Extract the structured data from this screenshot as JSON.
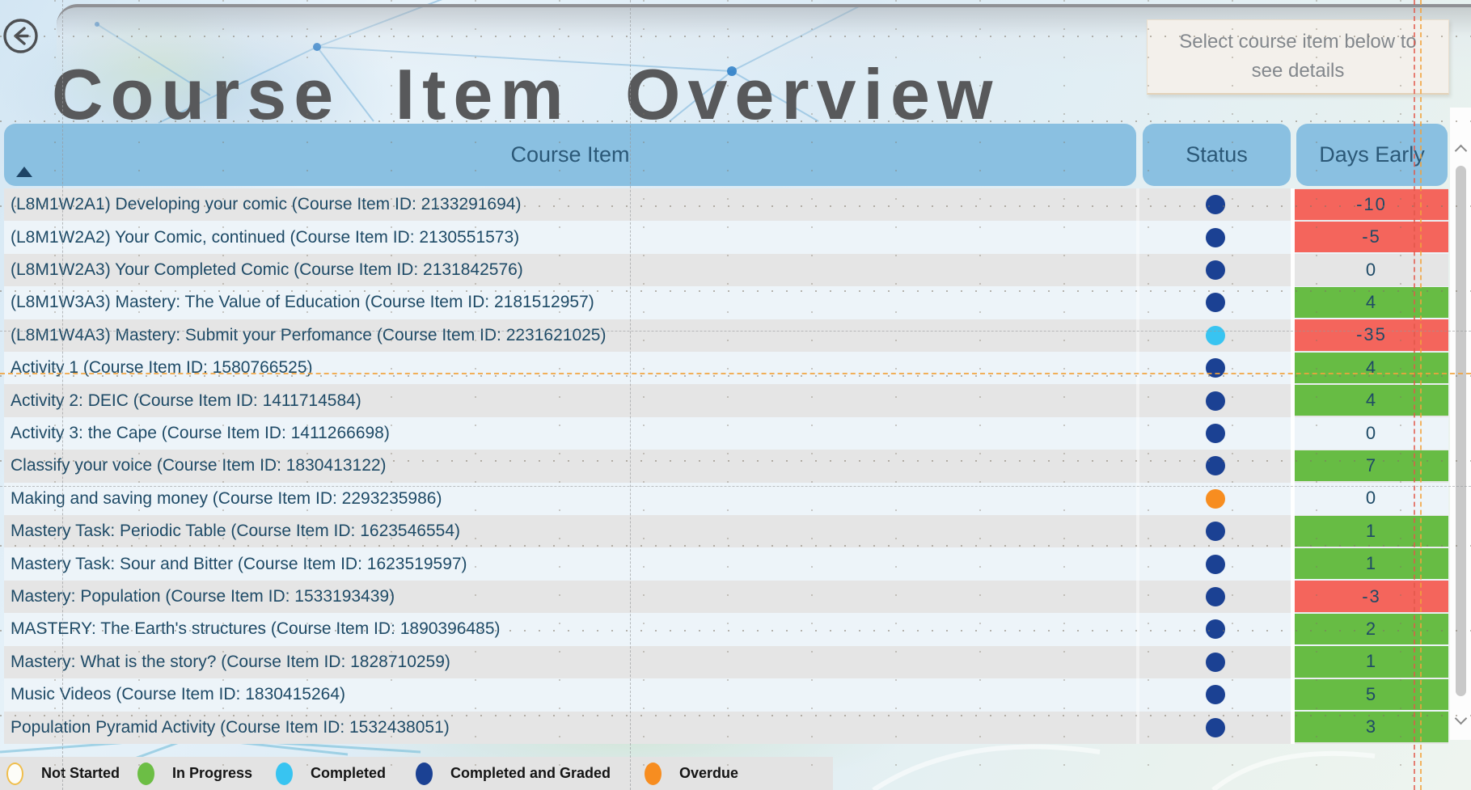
{
  "page": {
    "title": "Course Item Overview",
    "info_box_text": "Select course item below to see details"
  },
  "colors": {
    "header_bg": "#8ac0e1",
    "header_text": "#2b5877",
    "row_odd": "#e5e5e5",
    "row_even": "#edf4f9",
    "row_text": "#1e4a66",
    "days_negative_bg": "#f4655c",
    "days_positive_bg": "#67bc44",
    "status_completed_and_graded": "#1b4193",
    "status_completed": "#38c4f1",
    "status_overdue": "#f78d20",
    "status_in_progress": "#6cbe45",
    "status_not_started_ring": "#f0be4c",
    "legend_bg": "#e3e3e3",
    "title_text": "#58595b"
  },
  "table": {
    "columns": [
      {
        "label": "Course Item"
      },
      {
        "label": "Status"
      },
      {
        "label": "Days Early"
      }
    ],
    "sort": "ascending",
    "rows": [
      {
        "course_item": "(L8M1W2A1) Developing your comic (Course Item ID: 2133291694)",
        "status": "Completed and Graded",
        "status_fill": "#1b4193",
        "days_early": "-10",
        "days_fill": "#f4655c"
      },
      {
        "course_item": "(L8M1W2A2) Your Comic, continued (Course Item ID: 2130551573)",
        "status": "Completed and Graded",
        "status_fill": "#1b4193",
        "days_early": "-5",
        "days_fill": "#f4655c"
      },
      {
        "course_item": "(L8M1W2A3) Your Completed Comic (Course Item ID: 2131842576)",
        "status": "Completed and Graded",
        "status_fill": "#1b4193",
        "days_early": "0",
        "days_fill": ""
      },
      {
        "course_item": "(L8M1W3A3) Mastery: The Value of Education (Course Item ID: 2181512957)",
        "status": "Completed and Graded",
        "status_fill": "#1b4193",
        "days_early": "4",
        "days_fill": "#67bc44"
      },
      {
        "course_item": "(L8M1W4A3) Mastery: Submit your Perfomance (Course Item ID: 2231621025)",
        "status": "Completed",
        "status_fill": "#38c4f1",
        "days_early": "-35",
        "days_fill": "#f4655c"
      },
      {
        "course_item": "Activity 1 (Course Item ID: 1580766525)",
        "status": "Completed and Graded",
        "status_fill": "#1b4193",
        "days_early": "4",
        "days_fill": "#67bc44"
      },
      {
        "course_item": "Activity 2: DEIC (Course Item ID: 1411714584)",
        "status": "Completed and Graded",
        "status_fill": "#1b4193",
        "days_early": "4",
        "days_fill": "#67bc44"
      },
      {
        "course_item": "Activity 3: the Cape (Course Item ID: 1411266698)",
        "status": "Completed and Graded",
        "status_fill": "#1b4193",
        "days_early": "0",
        "days_fill": ""
      },
      {
        "course_item": "Classify your voice (Course Item ID: 1830413122)",
        "status": "Completed and Graded",
        "status_fill": "#1b4193",
        "days_early": "7",
        "days_fill": "#67bc44"
      },
      {
        "course_item": "Making and saving money (Course Item ID: 2293235986)",
        "status": "Overdue",
        "status_fill": "#f78d20",
        "days_early": "0",
        "days_fill": ""
      },
      {
        "course_item": "Mastery Task: Periodic Table (Course Item ID: 1623546554)",
        "status": "Completed and Graded",
        "status_fill": "#1b4193",
        "days_early": "1",
        "days_fill": "#67bc44"
      },
      {
        "course_item": "Mastery Task: Sour and Bitter (Course Item ID: 1623519597)",
        "status": "Completed and Graded",
        "status_fill": "#1b4193",
        "days_early": "1",
        "days_fill": "#67bc44"
      },
      {
        "course_item": "Mastery: Population (Course Item ID: 1533193439)",
        "status": "Completed and Graded",
        "status_fill": "#1b4193",
        "days_early": "-3",
        "days_fill": "#f4655c"
      },
      {
        "course_item": "MASTERY: The Earth's structures (Course Item ID: 1890396485)",
        "status": "Completed and Graded",
        "status_fill": "#1b4193",
        "days_early": "2",
        "days_fill": "#67bc44"
      },
      {
        "course_item": "Mastery: What is the story? (Course Item ID: 1828710259)",
        "status": "Completed and Graded",
        "status_fill": "#1b4193",
        "days_early": "1",
        "days_fill": "#67bc44"
      },
      {
        "course_item": "Music Videos (Course Item ID: 1830415264)",
        "status": "Completed and Graded",
        "status_fill": "#1b4193",
        "days_early": "5",
        "days_fill": "#67bc44"
      },
      {
        "course_item": "Population Pyramid Activity (Course Item ID: 1532438051)",
        "status": "Completed and Graded",
        "status_fill": "#1b4193",
        "days_early": "3",
        "days_fill": "#67bc44"
      }
    ]
  },
  "legend": {
    "items": [
      {
        "label": "Not Started",
        "color": "#f0be4c",
        "filled": false
      },
      {
        "label": "In Progress",
        "color": "#6cbe45",
        "filled": true
      },
      {
        "label": "Completed",
        "color": "#38c4f1",
        "filled": true
      },
      {
        "label": "Completed and Graded",
        "color": "#1b4193",
        "filled": true
      },
      {
        "label": "Overdue",
        "color": "#f78d20",
        "filled": true
      }
    ]
  }
}
